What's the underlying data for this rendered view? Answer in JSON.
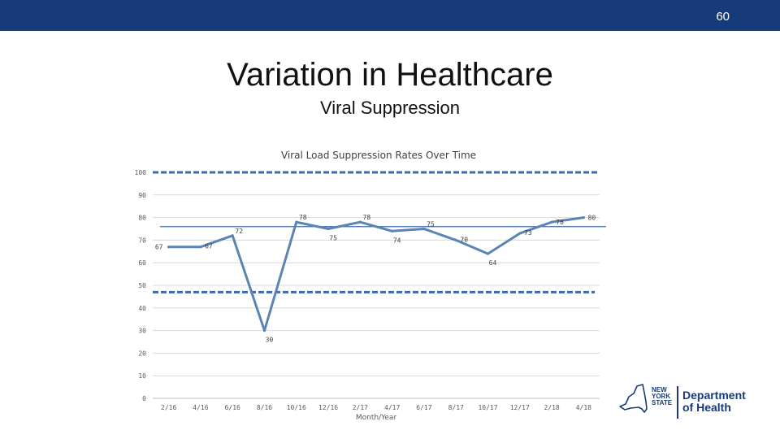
{
  "slide": {
    "number": "60",
    "title": "Variation in Healthcare",
    "subtitle": "Viral Suppression"
  },
  "logo": {
    "state_line1": "NEW",
    "state_line2": "YORK",
    "state_line3": "STATE",
    "dept_line1": "Department",
    "dept_line2": "of Health"
  },
  "colors": {
    "bar": "#163a7a",
    "series": "#5b84b5",
    "dashed": "#3f6aa6",
    "reference": "#3f6aa6",
    "grid": "#d9d9d9"
  },
  "chart_data": {
    "type": "line",
    "title": "Viral Load Suppression Rates Over Time",
    "xlabel": "Month/Year",
    "ylabel": "",
    "ylim": [
      0,
      100
    ],
    "yticks": [
      "0",
      "10",
      "20",
      "30",
      "40",
      "50",
      "60",
      "70",
      "80",
      "90",
      "100"
    ],
    "categories": [
      "2/16",
      "4/16",
      "6/16",
      "8/16",
      "10/16",
      "12/16",
      "2/17",
      "4/17",
      "6/17",
      "8/17",
      "10/17",
      "12/17",
      "2/18",
      "4/18"
    ],
    "series": [
      {
        "name": "Viral Load Suppression Rate",
        "values": [
          67,
          67,
          72,
          30,
          78,
          75,
          78,
          74,
          75,
          70,
          64,
          73,
          78,
          80
        ]
      }
    ],
    "reference_lines": [
      {
        "value": 76,
        "style": "solid"
      },
      {
        "value": 100,
        "style": "dashed"
      },
      {
        "value": 47,
        "style": "dashed"
      }
    ]
  }
}
